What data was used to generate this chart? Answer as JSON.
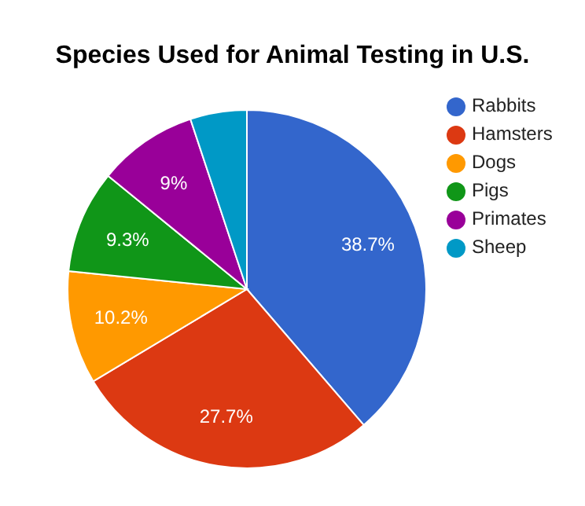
{
  "chart_data": {
    "type": "pie",
    "title": "Species Used for Animal Testing in U.S.",
    "categories": [
      "Rabbits",
      "Hamsters",
      "Dogs",
      "Pigs",
      "Primates",
      "Sheep"
    ],
    "values": [
      38.7,
      27.7,
      10.2,
      9.3,
      9,
      5.1
    ],
    "value_labels": [
      "38.7%",
      "27.7%",
      "10.2%",
      "9.3%",
      "9%",
      null
    ],
    "colors": [
      "#3366cc",
      "#dc3912",
      "#ff9900",
      "#109618",
      "#990099",
      "#0099c6"
    ],
    "legend": "right"
  }
}
